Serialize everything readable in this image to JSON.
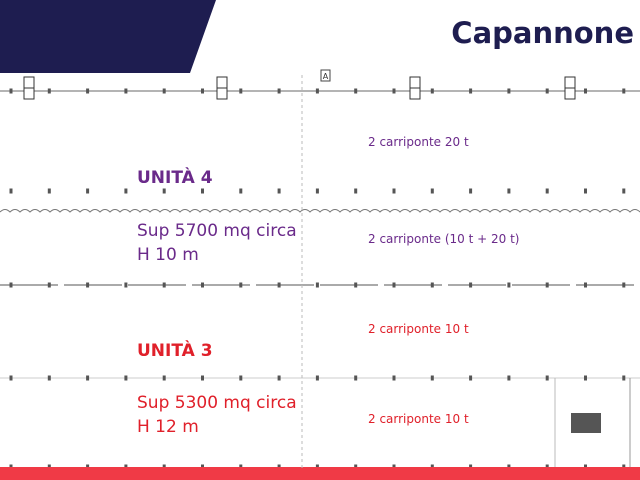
{
  "title": "Capannone",
  "colors": {
    "banner": "#1e1d50",
    "unit4": "#6a2a8a",
    "unit3": "#e0202a"
  },
  "plan_marker": "A",
  "unit4": {
    "name": "UNITÀ 4",
    "surface": "Sup 5700 mq circa",
    "height": "H 10 m"
  },
  "unit3": {
    "name": "UNITÀ 3",
    "surface": "Sup 5300 mq circa",
    "height": "H 12 m"
  },
  "bays": [
    {
      "label": "2 carriponte 20 t"
    },
    {
      "label": "2 carriponte (10 t + 20 t)"
    },
    {
      "label": "2 carriponte 10 t"
    },
    {
      "label": "2 carriponte 10 t"
    }
  ]
}
